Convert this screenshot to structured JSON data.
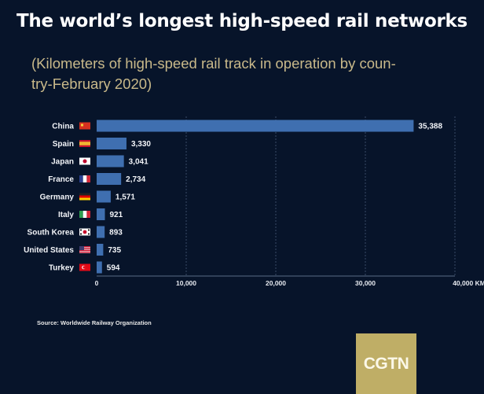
{
  "header": {
    "title": "The world’s longest high-speed rail networks",
    "subtitle_line1": "(Kilometers of high-speed rail track in operation by coun-",
    "subtitle_line2": "try-February 2020)"
  },
  "footer": {
    "source": "Source: Worldwide Railway Organization",
    "logo": "CGTN"
  },
  "colors": {
    "background": "#07142a",
    "bar": "#3f6fb0",
    "title": "#ffffff",
    "subtitle": "#c9b98a",
    "logo_bg": "#bfae66"
  },
  "chart_data": {
    "type": "bar",
    "orientation": "horizontal",
    "title": "The world’s longest high-speed rail networks",
    "subtitle": "(Kilometers of high-speed rail track in operation by country-February 2020)",
    "categories": [
      "China",
      "Spain",
      "Japan",
      "France",
      "Germany",
      "Italy",
      "South Korea",
      "United States",
      "Turkey"
    ],
    "flags": [
      "china-flag",
      "spain-flag",
      "japan-flag",
      "france-flag",
      "germany-flag",
      "italy-flag",
      "south-korea-flag",
      "united-states-flag",
      "turkey-flag"
    ],
    "values": [
      35388,
      3330,
      3041,
      2734,
      1571,
      921,
      893,
      735,
      594
    ],
    "value_labels": [
      "35,388",
      "3,330",
      "3,041",
      "2,734",
      "1,571",
      "921",
      "893",
      "735",
      "594"
    ],
    "xlabel": "KM",
    "ylabel": "",
    "xlim": [
      0,
      40000
    ],
    "x_ticks": [
      0,
      10000,
      20000,
      30000,
      40000
    ],
    "x_tick_labels": [
      "0",
      "10,000",
      "20,000",
      "30,000",
      "40,000 KM"
    ],
    "grid": "vertical dashed",
    "legend": "none",
    "source": "Source: Worldwide Railway Organization"
  }
}
